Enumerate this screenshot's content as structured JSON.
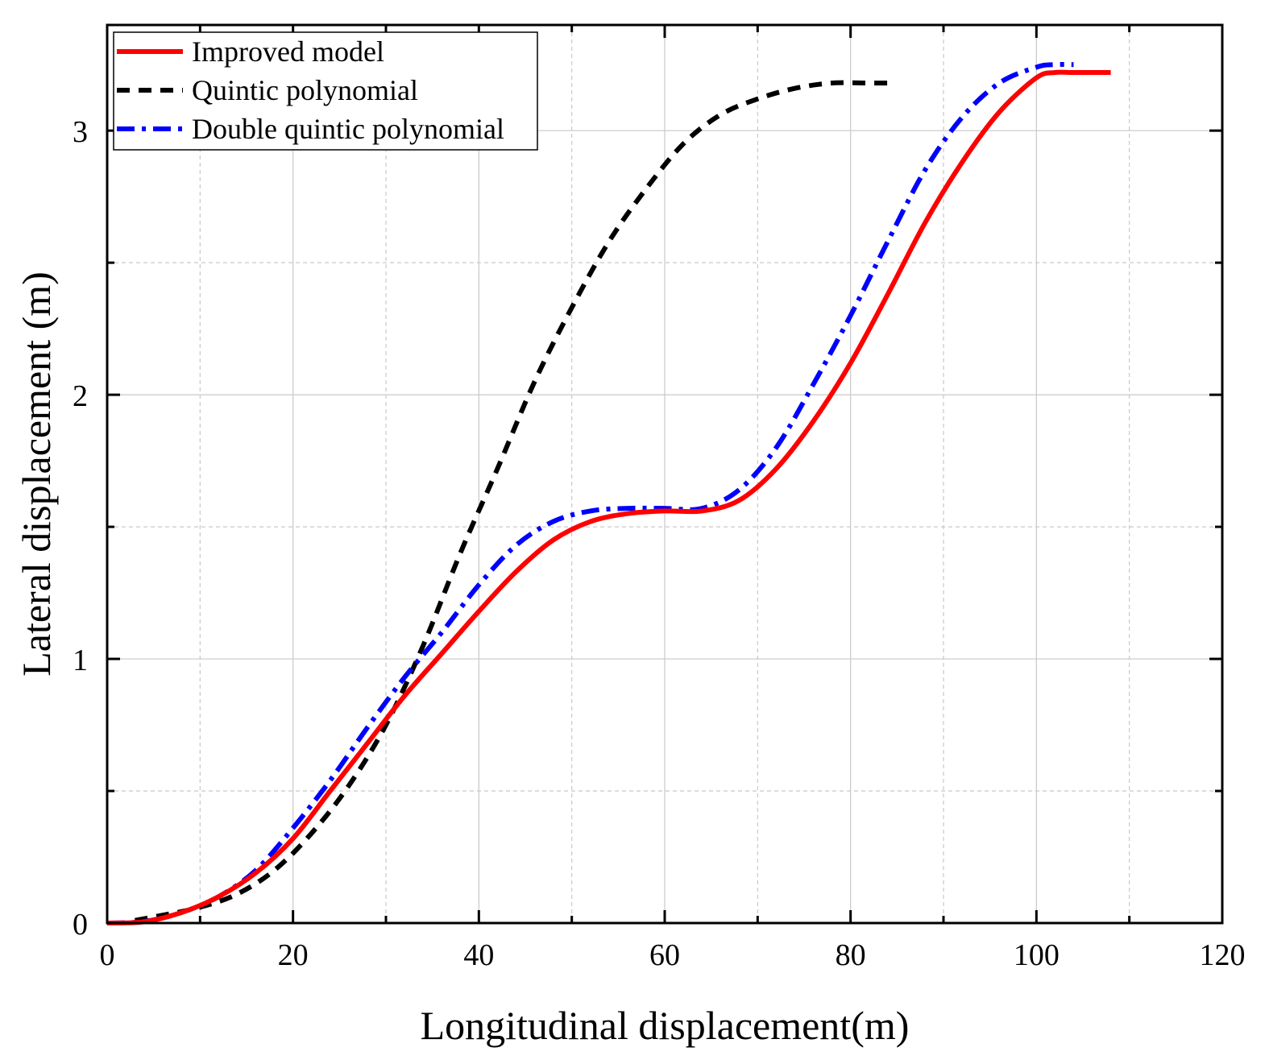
{
  "chart_data": {
    "type": "line",
    "title": "",
    "xlabel": "Longitudinal displacement(m)",
    "ylabel": "Lateral displacement (m)",
    "xlim": [
      0,
      120
    ],
    "ylim": [
      0,
      3.4
    ],
    "xticks": [
      0,
      20,
      40,
      60,
      80,
      100,
      120
    ],
    "yticks": [
      0,
      1,
      2,
      3
    ],
    "grid": true,
    "legend_position": "top-left",
    "series": [
      {
        "name": "Improved model",
        "color": "#ff0000",
        "style": "solid",
        "x": [
          0,
          4,
          8,
          12,
          16,
          20,
          24,
          28,
          32,
          36,
          40,
          44,
          48,
          52,
          56,
          60,
          64,
          68,
          72,
          76,
          80,
          84,
          88,
          92,
          96,
          100,
          102,
          104,
          108
        ],
        "y": [
          0,
          0.005,
          0.04,
          0.1,
          0.19,
          0.32,
          0.5,
          0.68,
          0.86,
          1.02,
          1.18,
          1.33,
          1.45,
          1.52,
          1.55,
          1.56,
          1.56,
          1.6,
          1.72,
          1.9,
          2.12,
          2.38,
          2.65,
          2.88,
          3.07,
          3.2,
          3.22,
          3.22,
          3.22
        ]
      },
      {
        "name": "Quintic polynomial",
        "color": "#000000",
        "style": "dashed",
        "x": [
          3,
          6,
          10,
          14,
          18,
          22,
          26,
          30,
          34,
          38,
          42,
          46,
          50,
          54,
          58,
          62,
          66,
          70,
          74,
          78,
          82,
          84
        ],
        "y": [
          0.01,
          0.03,
          0.06,
          0.11,
          0.2,
          0.34,
          0.52,
          0.75,
          1.05,
          1.4,
          1.72,
          2.05,
          2.33,
          2.58,
          2.78,
          2.95,
          3.06,
          3.12,
          3.16,
          3.18,
          3.18,
          3.18
        ]
      },
      {
        "name": "Double quintic polynomial",
        "color": "#0000ff",
        "style": "dashdot",
        "x": [
          0,
          4,
          8,
          12,
          16,
          20,
          24,
          28,
          32,
          36,
          40,
          44,
          48,
          52,
          56,
          60,
          64,
          68,
          72,
          76,
          80,
          84,
          88,
          92,
          96,
          100,
          102,
          104
        ],
        "y": [
          0,
          0.006,
          0.04,
          0.1,
          0.2,
          0.36,
          0.54,
          0.74,
          0.93,
          1.1,
          1.28,
          1.43,
          1.52,
          1.56,
          1.57,
          1.57,
          1.57,
          1.64,
          1.8,
          2.04,
          2.3,
          2.58,
          2.85,
          3.05,
          3.18,
          3.24,
          3.25,
          3.25
        ]
      }
    ]
  }
}
